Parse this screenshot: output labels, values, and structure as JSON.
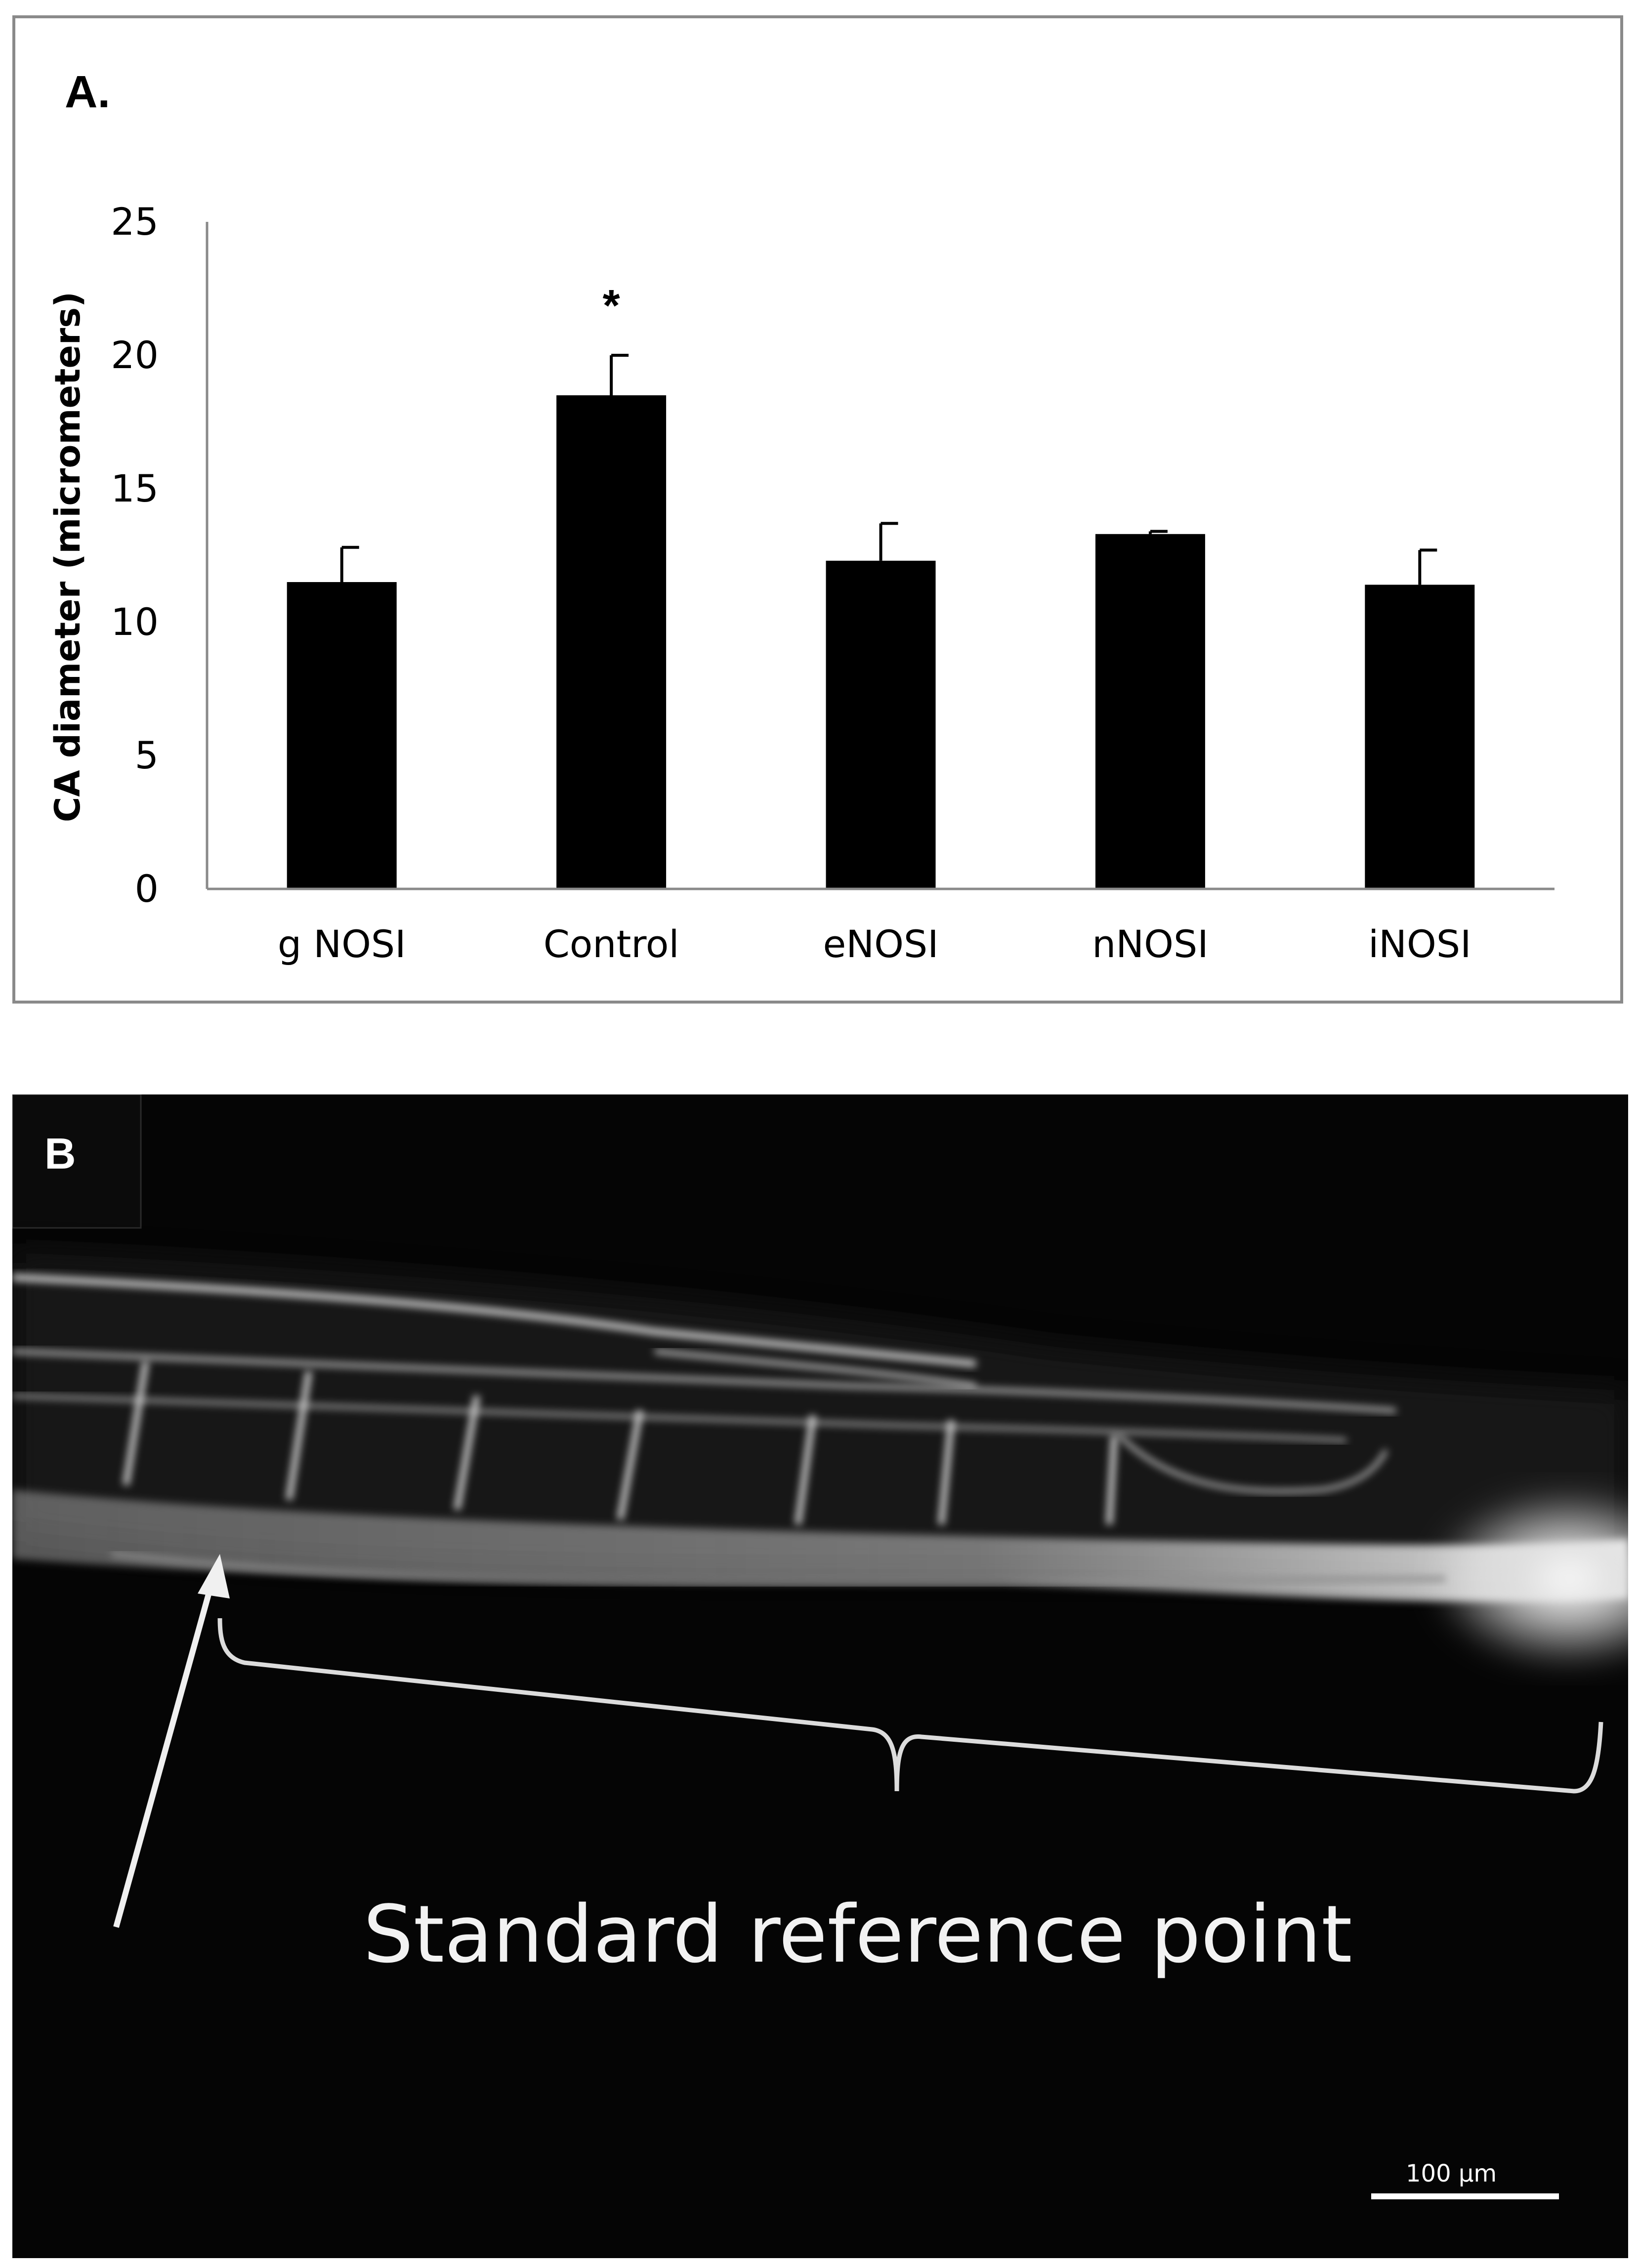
{
  "panel_a": {
    "label": "A.",
    "chart_data": {
      "type": "bar",
      "categories": [
        "g NOSI",
        "Control",
        "eNOSI",
        "nNOSI",
        "iNOSI"
      ],
      "values": [
        11.5,
        18.5,
        12.3,
        13.3,
        11.4
      ],
      "error_upper": [
        12.8,
        20.0,
        13.7,
        13.4,
        12.7
      ],
      "significance": [
        "",
        "*",
        "",
        "",
        ""
      ],
      "yticks": [
        0,
        5,
        10,
        15,
        20,
        25
      ],
      "ytick_labels": [
        "0",
        "5",
        "10",
        "15",
        "20",
        "25"
      ],
      "ylim": [
        0,
        25
      ],
      "ylabel": "CA diameter (micrometers)",
      "xlabel": "",
      "title": "",
      "grid": false,
      "bar_color": "#000000"
    }
  },
  "panel_b": {
    "label": "B",
    "annotation": "Standard reference point",
    "scale_bar": "100 µm",
    "background": "#050505"
  }
}
